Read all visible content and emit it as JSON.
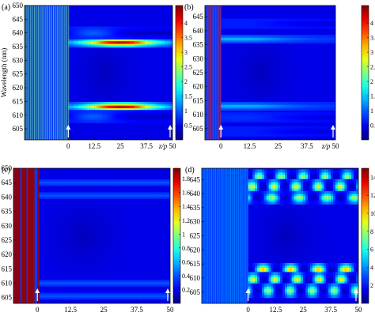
{
  "chart_data": [
    {
      "type": "heatmap",
      "panel_label": "(a)",
      "ylabel": "Wavelength (nm)",
      "yticks": [
        605,
        610,
        615,
        620,
        625,
        630,
        635,
        640,
        645,
        650
      ],
      "ylim": [
        601,
        650
      ],
      "xticks": [
        "0",
        "12.5",
        "25",
        "37.5",
        "50"
      ],
      "xtick_values": [
        0,
        12.5,
        25,
        37.5,
        50
      ],
      "xlim": [
        -21,
        50
      ],
      "x_unit_label": "z/p",
      "colorbar": {
        "ticks": [
          0.5,
          1,
          1.5,
          2,
          2.5,
          3,
          3.5,
          4
        ],
        "max": 4.6
      },
      "arrows_at_x": [
        0,
        50
      ],
      "stripes": {
        "x_from": -21,
        "x_to": 0,
        "intensity": 0.52
      },
      "bands": [
        {
          "center": 636.5,
          "sigma": 0.7,
          "peak": 4.3,
          "x_peak": 25,
          "spread": 17,
          "base": 0.9
        },
        {
          "center": 613.0,
          "sigma": 0.7,
          "peak": 4.3,
          "x_peak": 25,
          "spread": 17,
          "base": 0.9
        },
        {
          "center": 640.0,
          "sigma": 0.9,
          "peak": 1.0,
          "x_peak": 12,
          "spread": 12,
          "base": 0.3
        },
        {
          "center": 609.5,
          "sigma": 0.9,
          "peak": 1.0,
          "x_peak": 12,
          "spread": 12,
          "base": 0.3
        }
      ]
    },
    {
      "type": "heatmap",
      "panel_label": "(b)",
      "ylabel": "",
      "yticks": [
        605,
        610,
        615,
        620,
        625,
        630,
        635,
        640,
        645
      ],
      "ylim": [
        601,
        649
      ],
      "xticks": [
        "0",
        "12.5",
        "25",
        "37.5",
        "50"
      ],
      "xtick_values": [
        0,
        12.5,
        25,
        37.5,
        50
      ],
      "xlim": [
        -7,
        50
      ],
      "x_unit_label": "z/p",
      "colorbar": {
        "ticks": [
          0.5,
          1,
          1.5,
          2,
          2.5,
          3,
          3.5,
          4
        ],
        "max": 4.6
      },
      "arrows_at_x": [
        0,
        50
      ],
      "stripes": {
        "x_from": -7,
        "x_to": 0,
        "intensity": 0.85
      },
      "bands": [
        {
          "center": 637.0,
          "sigma": 0.6,
          "peak": 1.4,
          "x_peak": 6,
          "spread": 25,
          "base": 0.8
        },
        {
          "center": 613.0,
          "sigma": 0.6,
          "peak": 1.4,
          "x_peak": 6,
          "spread": 25,
          "base": 0.8
        },
        {
          "center": 642.5,
          "sigma": 0.7,
          "peak": 0.7,
          "x_peak": 8,
          "spread": 25,
          "base": 0.4
        },
        {
          "center": 609.0,
          "sigma": 0.7,
          "peak": 0.8,
          "x_peak": 8,
          "spread": 25,
          "base": 0.4
        },
        {
          "center": 604.0,
          "sigma": 0.7,
          "peak": 0.7,
          "x_peak": 8,
          "spread": 25,
          "base": 0.4
        }
      ]
    },
    {
      "type": "heatmap",
      "panel_label": "(c)",
      "ylabel": "",
      "yticks": [
        605,
        610,
        615,
        620,
        625,
        630,
        635,
        640,
        645,
        650
      ],
      "ylim": [
        603,
        650
      ],
      "xticks": [
        "0",
        "12.5",
        "25",
        "37.5",
        "50"
      ],
      "xtick_values": [
        0,
        12.5,
        25,
        37.5,
        50
      ],
      "xlim": [
        -9,
        50
      ],
      "x_unit_label": "",
      "colorbar": {
        "ticks": [
          0.2,
          0.4,
          0.6,
          0.8,
          1,
          1.2,
          1.4,
          1.6,
          1.8
        ],
        "max": 1.95
      },
      "arrows_at_x": [
        0,
        50
      ],
      "stripes": {
        "x_from": -9,
        "x_to": 0,
        "intensity": 0.97
      },
      "bands": [
        {
          "center": 645.0,
          "sigma": 0.45,
          "peak": 0.4,
          "x_peak": 2,
          "spread": 60,
          "base": 0.4
        },
        {
          "center": 640.5,
          "sigma": 0.45,
          "peak": 0.4,
          "x_peak": 2,
          "spread": 60,
          "base": 0.4
        },
        {
          "center": 610.0,
          "sigma": 0.45,
          "peak": 0.4,
          "x_peak": 2,
          "spread": 60,
          "base": 0.4
        },
        {
          "center": 605.5,
          "sigma": 0.45,
          "peak": 0.4,
          "x_peak": 2,
          "spread": 60,
          "base": 0.4
        }
      ]
    },
    {
      "type": "heatmap",
      "panel_label": "(d)",
      "ylabel": "",
      "yticks": [
        605,
        610,
        615,
        620,
        625,
        630,
        635,
        640,
        645
      ],
      "ylim": [
        601,
        649
      ],
      "xticks": [
        "0",
        "12.5",
        "25",
        "37.5",
        "50"
      ],
      "xtick_values": [
        0,
        12.5,
        25,
        37.5,
        50
      ],
      "xlim": [
        -21,
        50
      ],
      "x_unit_label": "",
      "colorbar": {
        "ticks": [
          2,
          4,
          6,
          8,
          10,
          12,
          14
        ],
        "max": 15
      },
      "arrows_at_x": [
        0,
        50
      ],
      "stripes": {
        "x_from": -21,
        "x_to": 0,
        "intensity": 0.3
      },
      "bands": [
        {
          "center": 646.0,
          "sigma": 1.0,
          "peak": 8,
          "x_peak": 25,
          "spread": 80,
          "base": 1,
          "blobs": 5
        },
        {
          "center": 642.5,
          "sigma": 1.0,
          "peak": 9,
          "x_peak": 25,
          "spread": 80,
          "base": 1,
          "blobs": 5
        },
        {
          "center": 638.5,
          "sigma": 0.9,
          "peak": 8,
          "x_peak": 25,
          "spread": 80,
          "base": 1,
          "blobs": 4
        },
        {
          "center": 613.0,
          "sigma": 0.9,
          "peak": 10,
          "x_peak": 25,
          "spread": 80,
          "base": 1,
          "blobs": 4
        },
        {
          "center": 609.5,
          "sigma": 1.0,
          "peak": 9,
          "x_peak": 25,
          "spread": 80,
          "base": 1,
          "blobs": 5
        },
        {
          "center": 605.5,
          "sigma": 1.0,
          "peak": 8,
          "x_peak": 25,
          "spread": 80,
          "base": 1,
          "blobs": 5
        }
      ]
    }
  ]
}
